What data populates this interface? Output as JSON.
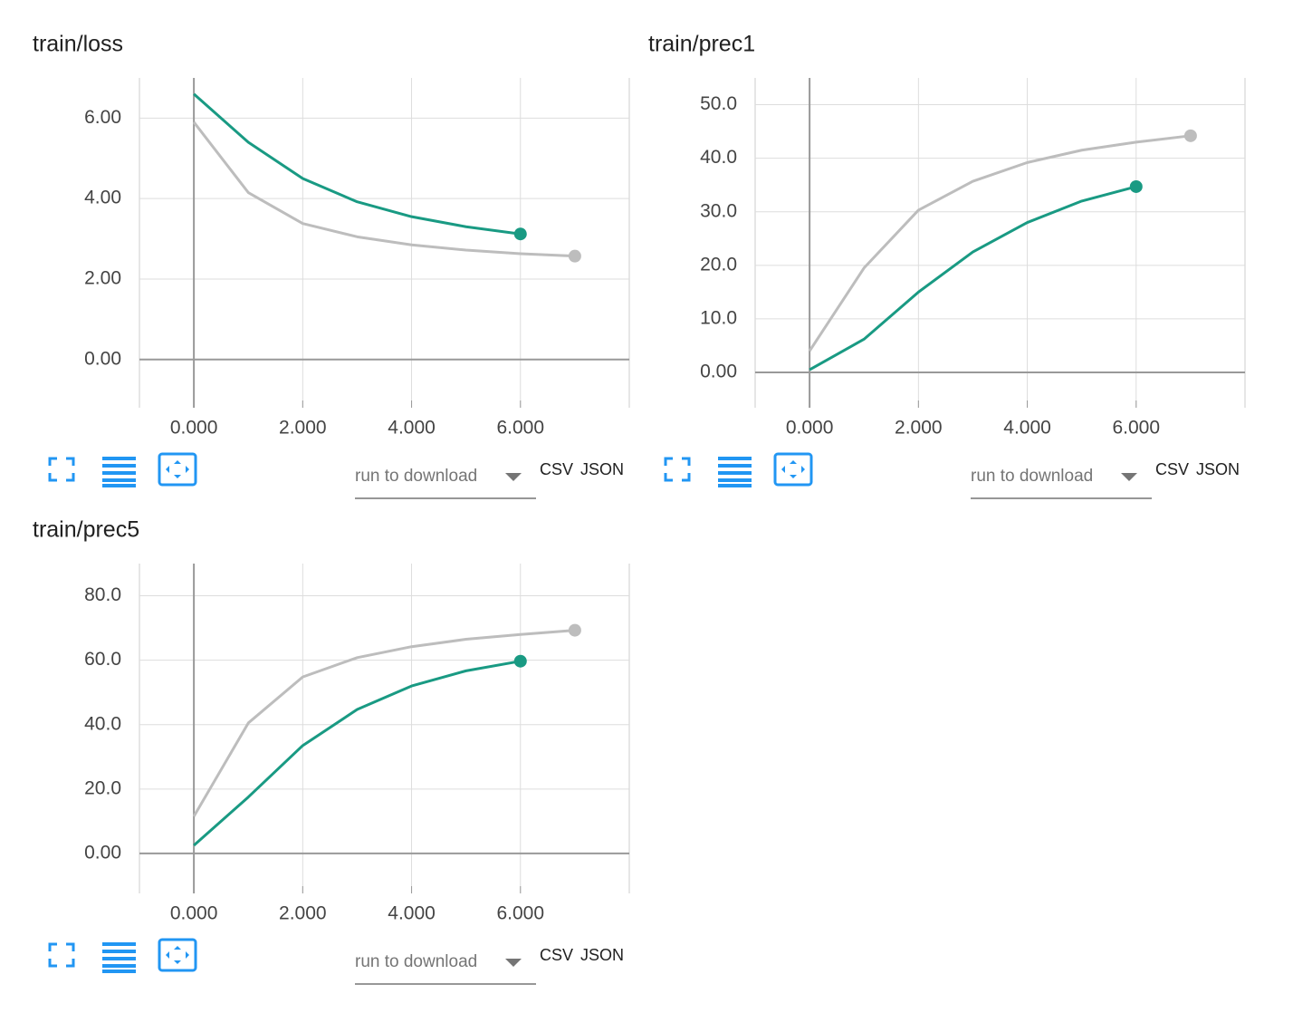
{
  "chart_data": [
    {
      "type": "line",
      "title": "train/loss",
      "x": [
        0,
        1,
        2,
        3,
        4,
        5,
        6,
        7
      ],
      "series": [
        {
          "color": "#bdbdbd",
          "values": [
            5.9,
            4.15,
            3.38,
            3.05,
            2.85,
            2.72,
            2.63,
            2.57
          ]
        },
        {
          "color": "#199a83",
          "values": [
            6.6,
            5.4,
            4.5,
            3.92,
            3.55,
            3.3,
            3.12,
            null
          ]
        }
      ],
      "xlim": [
        -1,
        8
      ],
      "xticks": [
        {
          "value": 0,
          "label": "0.000"
        },
        {
          "value": 2,
          "label": "2.000"
        },
        {
          "value": 4,
          "label": "4.000"
        },
        {
          "value": 6,
          "label": "6.000"
        }
      ],
      "ylim": [
        -1.2,
        7
      ],
      "yticks": [
        {
          "value": 0,
          "label": "0.00"
        },
        {
          "value": 2,
          "label": "2.00"
        },
        {
          "value": 4,
          "label": "4.00"
        },
        {
          "value": 6,
          "label": "6.00"
        }
      ],
      "grid": true
    },
    {
      "type": "line",
      "title": "train/prec1",
      "x": [
        0,
        1,
        2,
        3,
        4,
        5,
        6,
        7
      ],
      "series": [
        {
          "color": "#bdbdbd",
          "values": [
            4,
            19.5,
            30.3,
            35.7,
            39.2,
            41.5,
            43,
            44.2
          ]
        },
        {
          "color": "#199a83",
          "values": [
            0.5,
            6.2,
            15,
            22.5,
            28,
            32,
            34.7,
            null
          ]
        }
      ],
      "xlim": [
        -1,
        8
      ],
      "xticks": [
        {
          "value": 0,
          "label": "0.000"
        },
        {
          "value": 2,
          "label": "2.000"
        },
        {
          "value": 4,
          "label": "4.000"
        },
        {
          "value": 6,
          "label": "6.000"
        }
      ],
      "ylim": [
        -6.6,
        55
      ],
      "yticks": [
        {
          "value": 0,
          "label": "0.00"
        },
        {
          "value": 10,
          "label": "10.0"
        },
        {
          "value": 20,
          "label": "20.0"
        },
        {
          "value": 30,
          "label": "30.0"
        },
        {
          "value": 40,
          "label": "40.0"
        },
        {
          "value": 50,
          "label": "50.0"
        }
      ],
      "grid": true
    },
    {
      "type": "line",
      "title": "train/prec5",
      "x": [
        0,
        1,
        2,
        3,
        4,
        5,
        6,
        7
      ],
      "series": [
        {
          "color": "#bdbdbd",
          "values": [
            11.5,
            40.5,
            54.8,
            60.8,
            64.2,
            66.5,
            68,
            69.3
          ]
        },
        {
          "color": "#199a83",
          "values": [
            2.5,
            17.5,
            33.5,
            44.7,
            52,
            56.7,
            59.7,
            null
          ]
        }
      ],
      "xlim": [
        -1,
        8
      ],
      "xticks": [
        {
          "value": 0,
          "label": "0.000"
        },
        {
          "value": 2,
          "label": "2.000"
        },
        {
          "value": 4,
          "label": "4.000"
        },
        {
          "value": 6,
          "label": "6.000"
        }
      ],
      "ylim": [
        -12.4,
        90
      ],
      "yticks": [
        {
          "value": 0,
          "label": "0.00"
        },
        {
          "value": 20,
          "label": "20.0"
        },
        {
          "value": 40,
          "label": "40.0"
        },
        {
          "value": 60,
          "label": "60.0"
        },
        {
          "value": 80,
          "label": "80.0"
        }
      ],
      "grid": true
    }
  ],
  "controls": [
    {
      "placeholder": "run to download",
      "csv": "CSV",
      "json": "JSON"
    },
    {
      "placeholder": "run to download",
      "csv": "CSV",
      "json": "JSON"
    },
    {
      "placeholder": "run to download",
      "csv": "CSV",
      "json": "JSON"
    }
  ]
}
